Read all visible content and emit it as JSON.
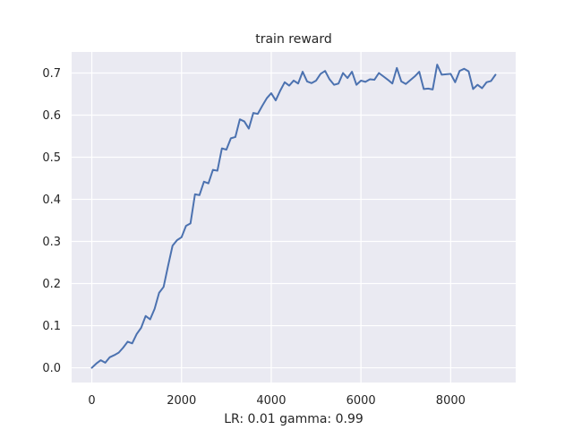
{
  "chart_data": {
    "type": "line",
    "title": "train reward",
    "xlabel": "LR: 0.01 gamma: 0.99",
    "ylabel": "",
    "xlim": [
      -450,
      9450
    ],
    "ylim": [
      -0.035,
      0.75
    ],
    "xticks": [
      0,
      2000,
      4000,
      6000,
      8000
    ],
    "xtick_labels": [
      "0",
      "2000",
      "4000",
      "6000",
      "8000"
    ],
    "yticks": [
      0.0,
      0.1,
      0.2,
      0.3,
      0.4,
      0.5,
      0.6,
      0.7
    ],
    "ytick_labels": [
      "0.0",
      "0.1",
      "0.2",
      "0.3",
      "0.4",
      "0.5",
      "0.6",
      "0.7"
    ],
    "grid": true,
    "background_color": "#eaeaf2",
    "grid_color": "#ffffff",
    "series": [
      {
        "color": "#4c72b0",
        "x": [
          0,
          100,
          200,
          300,
          400,
          500,
          600,
          700,
          800,
          900,
          1000,
          1100,
          1200,
          1300,
          1400,
          1500,
          1600,
          1700,
          1800,
          1900,
          2000,
          2100,
          2200,
          2300,
          2400,
          2500,
          2600,
          2700,
          2800,
          2900,
          3000,
          3100,
          3200,
          3300,
          3400,
          3500,
          3600,
          3700,
          3800,
          3900,
          4000,
          4100,
          4200,
          4300,
          4400,
          4500,
          4600,
          4700,
          4800,
          4900,
          5000,
          5100,
          5200,
          5300,
          5400,
          5500,
          5600,
          5700,
          5800,
          5900,
          6000,
          6100,
          6200,
          6300,
          6400,
          6500,
          6600,
          6700,
          6800,
          6900,
          7000,
          7100,
          7200,
          7300,
          7400,
          7500,
          7600,
          7700,
          7800,
          7900,
          8000,
          8100,
          8200,
          8300,
          8400,
          8500,
          8600,
          8700,
          8800,
          8900,
          9000
        ],
        "y": [
          0.0,
          0.01,
          0.018,
          0.012,
          0.025,
          0.03,
          0.036,
          0.048,
          0.062,
          0.058,
          0.08,
          0.095,
          0.123,
          0.115,
          0.14,
          0.178,
          0.192,
          0.242,
          0.29,
          0.303,
          0.31,
          0.337,
          0.343,
          0.412,
          0.41,
          0.442,
          0.438,
          0.47,
          0.468,
          0.521,
          0.518,
          0.545,
          0.548,
          0.59,
          0.585,
          0.568,
          0.605,
          0.603,
          0.622,
          0.64,
          0.652,
          0.635,
          0.658,
          0.678,
          0.67,
          0.682,
          0.675,
          0.703,
          0.68,
          0.676,
          0.682,
          0.698,
          0.705,
          0.685,
          0.672,
          0.675,
          0.7,
          0.688,
          0.703,
          0.672,
          0.682,
          0.679,
          0.685,
          0.684,
          0.7,
          0.692,
          0.684,
          0.675,
          0.712,
          0.68,
          0.674,
          0.683,
          0.692,
          0.703,
          0.662,
          0.663,
          0.661,
          0.72,
          0.696,
          0.697,
          0.698,
          0.678,
          0.705,
          0.71,
          0.704,
          0.662,
          0.672,
          0.664,
          0.678,
          0.681,
          0.696
        ]
      }
    ]
  }
}
